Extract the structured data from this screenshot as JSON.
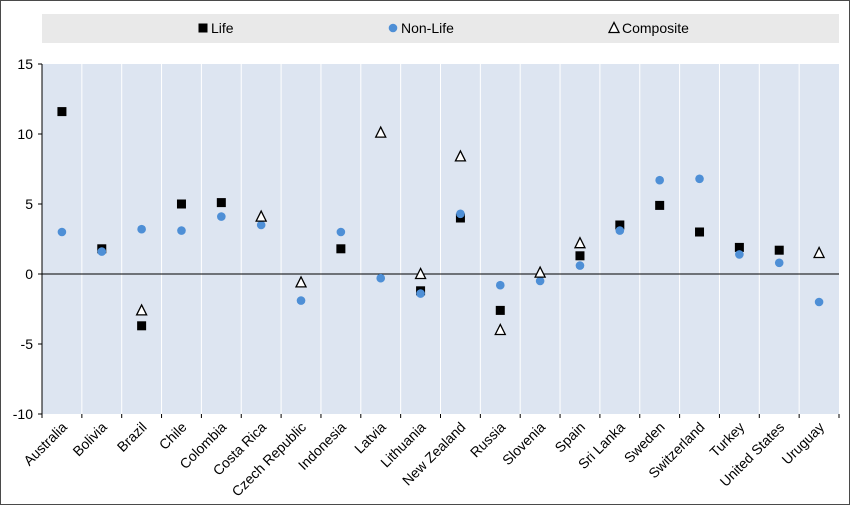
{
  "chart_data": {
    "type": "scatter",
    "title": "",
    "xlabel": "",
    "ylabel": "",
    "ylim": [
      -10,
      15
    ],
    "yticks": [
      15,
      10,
      5,
      0,
      -5,
      -10
    ],
    "grid": "vertical",
    "legend_position": "top",
    "colors": {
      "plot_bg": "#dde5f1",
      "legend_bg": "#e9e9e9",
      "life": "#000000",
      "non_life": "#4e8fd6",
      "composite": "#000000",
      "grid": "#ffffff",
      "axis": "#000000"
    },
    "categories": [
      "Australia",
      "Bolivia",
      "Brazil",
      "Chile",
      "Colombia",
      "Costa Rica",
      "Czech Republic",
      "Indonesia",
      "Latvia",
      "Lithuania",
      "New Zealand",
      "Russia",
      "Slovenia",
      "Spain",
      "Sri Lanka",
      "Sweden",
      "Switzerland",
      "Turkey",
      "United States",
      "Uruguay"
    ],
    "series": [
      {
        "name": "Life",
        "marker": "square",
        "values": [
          11.6,
          1.8,
          -3.7,
          5.0,
          5.1,
          null,
          null,
          1.8,
          null,
          -1.2,
          4.0,
          -2.6,
          null,
          1.3,
          3.5,
          4.9,
          3.0,
          1.9,
          1.7,
          null
        ]
      },
      {
        "name": "Non-Life",
        "marker": "circle",
        "values": [
          3.0,
          1.6,
          3.2,
          3.1,
          4.1,
          3.5,
          -1.9,
          3.0,
          -0.3,
          -1.4,
          4.3,
          -0.8,
          -0.5,
          0.6,
          3.1,
          6.7,
          6.8,
          1.4,
          0.8,
          -2.0
        ]
      },
      {
        "name": "Composite",
        "marker": "triangle",
        "values": [
          null,
          null,
          -2.6,
          null,
          null,
          4.1,
          -0.6,
          null,
          10.1,
          0.0,
          8.4,
          -4.0,
          0.1,
          2.2,
          null,
          null,
          null,
          null,
          null,
          1.5
        ]
      }
    ]
  }
}
